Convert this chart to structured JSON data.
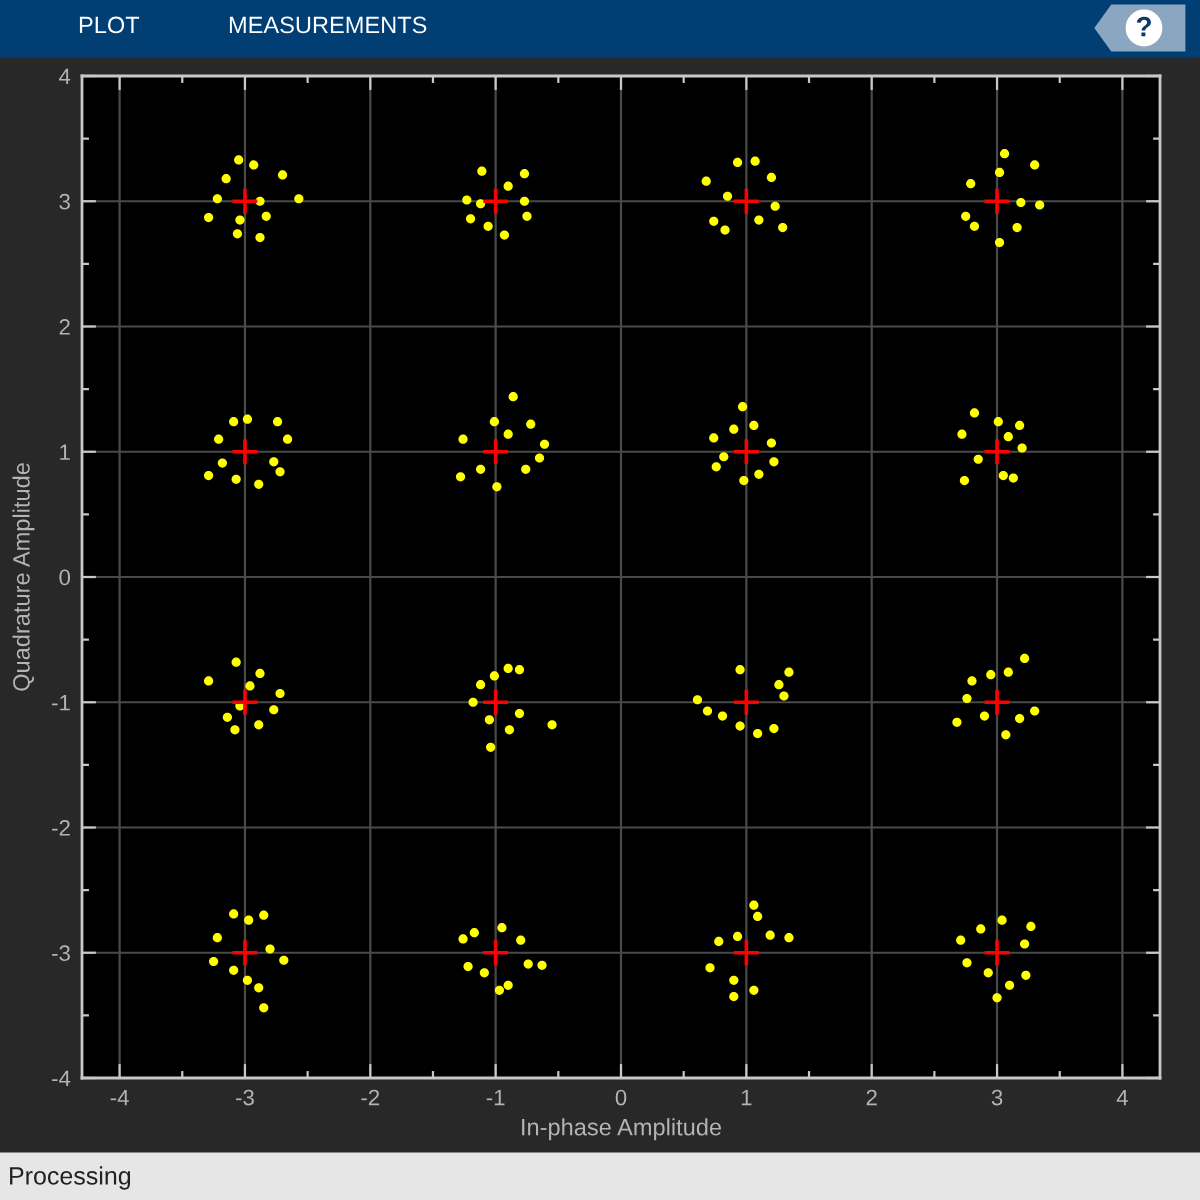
{
  "chart_data": {
    "type": "scatter",
    "xlabel": "In-phase Amplitude",
    "ylabel": "Quadrature Amplitude",
    "annotations": [
      "PLOT",
      "MEASUREMENTS",
      "?",
      "Processing"
    ],
    "xlim": [
      -4.3,
      4.3
    ],
    "ylim": [
      -4,
      4
    ],
    "xticks": [
      -4,
      -3,
      -2,
      -1,
      0,
      1,
      2,
      3,
      4
    ],
    "yticks": [
      -4,
      -3,
      -2,
      -1,
      0,
      1,
      2,
      3,
      4
    ],
    "grid": true,
    "series": [
      {
        "color": "#ffff00",
        "marker": "circle",
        "x": [
          -3.05,
          -2.57,
          -3.29,
          -2.88,
          -2.7,
          -3.06,
          -2.83,
          -3.22,
          -2.93,
          -2.88,
          -3.04,
          -3.15,
          -1.11,
          -0.77,
          -0.75,
          -0.93,
          -1.2,
          -1.23,
          -0.9,
          -1.06,
          -0.77,
          -1.12,
          -3.29,
          -2.74,
          -2.66,
          -2.72,
          -2.89,
          -3.07,
          -3.21,
          -3.09,
          -2.98,
          -2.77,
          -3.18,
          -0.86,
          -1.28,
          -0.99,
          -0.61,
          -0.72,
          -1.26,
          -0.65,
          -0.76,
          -1.01,
          -1.12,
          -0.9,
          0.68,
          1.29,
          0.83,
          1.07,
          1.2,
          1.23,
          0.74,
          0.93,
          1.1,
          0.85,
          3.06,
          3.3,
          3.34,
          3.02,
          2.75,
          2.79,
          3.16,
          2.82,
          3.19,
          3.02,
          0.97,
          0.76,
          0.98,
          1.22,
          1.2,
          0.74,
          0.9,
          1.1,
          1.06,
          0.82,
          2.74,
          2.82,
          3.18,
          3.2,
          2.72,
          3.13,
          3.01,
          3.05,
          2.85,
          3.09,
          -3.07,
          -3.29,
          -2.72,
          -2.77,
          -3.08,
          -2.89,
          -3.14,
          -2.88,
          -2.96,
          -3.04,
          -0.55,
          -1.04,
          -0.81,
          -0.9,
          -1.18,
          -1.12,
          -0.89,
          -0.81,
          -1.01,
          -1.05,
          -2.85,
          -2.89,
          -2.69,
          -2.85,
          -3.09,
          -3.25,
          -3.22,
          -2.98,
          -2.97,
          -3.09,
          -2.8,
          -0.63,
          -0.97,
          -0.9,
          -0.8,
          -1.26,
          -1.22,
          -0.95,
          -1.17,
          -0.74,
          -1.09,
          0.61,
          1.34,
          1.09,
          0.69,
          0.95,
          1.26,
          1.22,
          0.81,
          1.3,
          0.95,
          3.22,
          2.68,
          3.3,
          2.8,
          3.07,
          3.09,
          2.76,
          3.18,
          2.95,
          2.9,
          1.06,
          1.34,
          0.71,
          0.9,
          1.06,
          0.78,
          1.19,
          1.09,
          0.9,
          0.93,
          3.0,
          2.71,
          3.23,
          3.27,
          3.1,
          2.76,
          3.04,
          3.22,
          2.93,
          2.87
        ],
        "values": [
          3.33,
          3.02,
          2.87,
          2.71,
          3.21,
          2.74,
          2.88,
          3.02,
          3.29,
          3.0,
          2.85,
          3.18,
          3.24,
          3.22,
          2.88,
          2.73,
          2.86,
          3.01,
          3.12,
          2.8,
          3.0,
          2.98,
          0.81,
          1.24,
          1.1,
          0.84,
          0.74,
          0.78,
          1.1,
          1.24,
          1.26,
          0.92,
          0.91,
          1.44,
          0.8,
          0.72,
          1.06,
          1.22,
          1.1,
          0.95,
          0.86,
          1.24,
          0.86,
          1.14,
          3.16,
          2.79,
          2.77,
          3.32,
          3.19,
          2.96,
          2.84,
          3.31,
          2.85,
          3.04,
          3.38,
          3.29,
          2.97,
          2.67,
          2.88,
          3.14,
          2.79,
          2.8,
          2.99,
          3.23,
          1.36,
          0.88,
          0.77,
          0.92,
          1.07,
          1.11,
          1.18,
          0.82,
          1.21,
          0.96,
          0.77,
          1.31,
          1.21,
          1.03,
          1.14,
          0.79,
          1.24,
          0.81,
          0.94,
          1.12,
          -0.68,
          -0.83,
          -0.93,
          -1.06,
          -1.22,
          -1.18,
          -1.12,
          -0.77,
          -0.87,
          -1.03,
          -1.18,
          -1.36,
          -0.74,
          -0.73,
          -1.0,
          -0.86,
          -1.22,
          -1.09,
          -0.79,
          -1.14,
          -3.44,
          -3.28,
          -3.06,
          -2.7,
          -2.69,
          -3.07,
          -2.88,
          -3.22,
          -2.74,
          -3.14,
          -2.97,
          -3.1,
          -3.3,
          -3.26,
          -2.9,
          -2.89,
          -3.11,
          -2.8,
          -2.84,
          -3.09,
          -3.16,
          -0.98,
          -0.76,
          -1.25,
          -1.07,
          -0.74,
          -0.86,
          -1.21,
          -1.11,
          -0.95,
          -1.19,
          -0.65,
          -1.16,
          -1.07,
          -0.83,
          -1.26,
          -0.76,
          -0.97,
          -1.13,
          -0.78,
          -1.11,
          -2.62,
          -2.88,
          -3.12,
          -3.35,
          -3.3,
          -2.91,
          -2.86,
          -2.71,
          -3.22,
          -2.87,
          -3.36,
          -2.9,
          -3.18,
          -2.79,
          -3.26,
          -3.08,
          -2.74,
          -2.93,
          -3.16,
          -2.81
        ]
      },
      {
        "color": "#ff0000",
        "marker": "cross",
        "x": [
          -3,
          -1,
          1,
          3,
          -3,
          -1,
          1,
          3,
          -3,
          -1,
          1,
          3,
          -3,
          -1,
          1,
          3
        ],
        "values": [
          3,
          3,
          3,
          3,
          1,
          1,
          1,
          1,
          -1,
          -1,
          -1,
          -1,
          -3,
          -3,
          -3,
          -3
        ]
      }
    ]
  }
}
